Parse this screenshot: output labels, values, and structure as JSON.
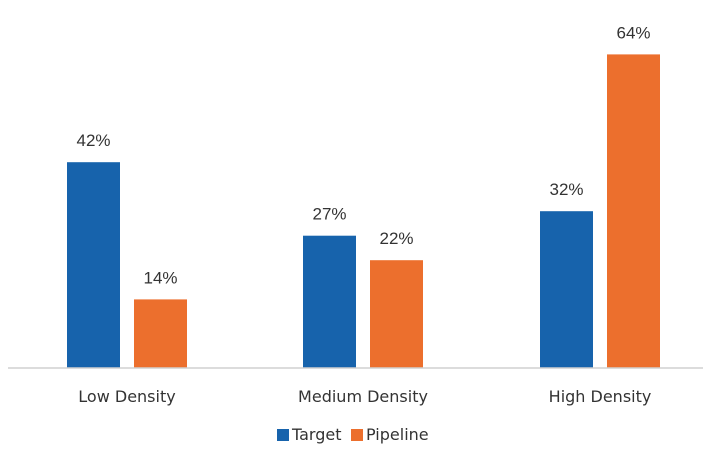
{
  "chart_data": {
    "type": "bar",
    "categories": [
      "Low Density",
      "Medium Density",
      "High Density"
    ],
    "series": [
      {
        "name": "Target",
        "values": [
          42,
          27,
          32
        ],
        "color": "#1763AC"
      },
      {
        "name": "Pipeline",
        "values": [
          14,
          22,
          64
        ],
        "color": "#EC6F2D"
      }
    ],
    "value_suffix": "%",
    "ylim": [
      0,
      70
    ],
    "grid": false,
    "legend_position": "bottom-center",
    "data_labels": [
      "42%",
      "27%",
      "32%",
      "14%",
      "22%",
      "64%"
    ],
    "legend": [
      "Target",
      "Pipeline"
    ]
  }
}
